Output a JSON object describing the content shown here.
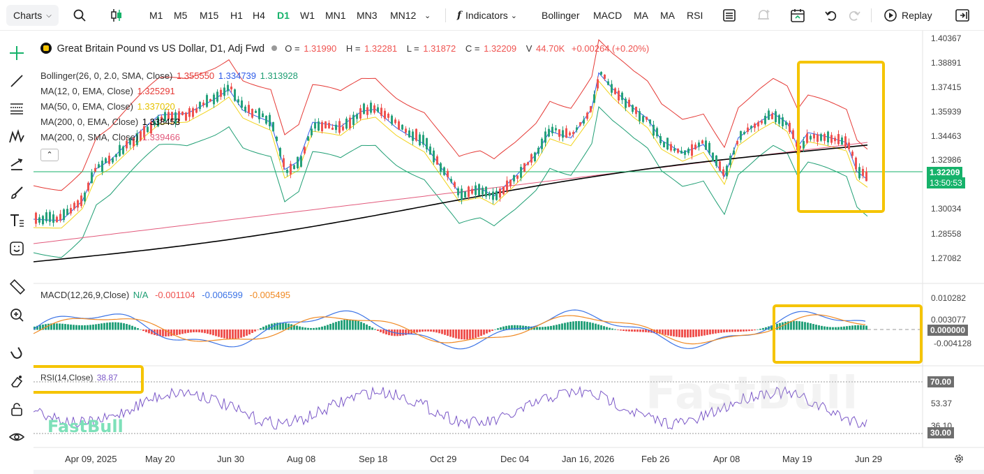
{
  "toolbar": {
    "charts_label": "Charts",
    "timeframes": [
      "M1",
      "M5",
      "M15",
      "H1",
      "H4",
      "D1",
      "W1",
      "MN1",
      "MN3",
      "MN12"
    ],
    "active_timeframe": "D1",
    "indicators_label": "Indicators",
    "quick_indicators": [
      "Bollinger",
      "MACD",
      "MA",
      "MA",
      "RSI"
    ],
    "replay_label": "Replay"
  },
  "symbol": {
    "title": "Great Britain Pound vs US Dollar, D1, Adj Fwd",
    "open_label": "O =",
    "open": "1.31990",
    "high_label": "H =",
    "high": "1.32281",
    "low_label": "L =",
    "low": "1.31872",
    "close_label": "C =",
    "close": "1.32209",
    "volume_label": "V",
    "volume": "44.70K",
    "change": "+0.00264 (+0.20%)"
  },
  "legend": {
    "bollinger": {
      "label": "Bollinger(26, 0, 2.0, SMA, Close)",
      "upper": "1.355550",
      "mid": "1.334739",
      "lower": "1.313928"
    },
    "ma1": {
      "label": "MA(12, 0, EMA, Close)",
      "value": "1.325291"
    },
    "ma2": {
      "label": "MA(50, 0, EMA, Close)",
      "value": "1.337020"
    },
    "ma3": {
      "label": "MA(200, 0, EMA, Close)",
      "value": "1.338453"
    },
    "ma4": {
      "label": "MA(200, 0, SMA, Close)",
      "value": "1.339466"
    },
    "collapse_icon": "chevron-up-icon"
  },
  "price_axis": [
    "1.40367",
    "1.38891",
    "1.37415",
    "1.35939",
    "1.34463",
    "1.32986",
    "1.30034",
    "1.28558",
    "1.27082"
  ],
  "last_price": "1.32209",
  "countdown": "13:50:53",
  "macd": {
    "label": "MACD(12,26,9,Close)",
    "na": "N/A",
    "v1": "-0.001104",
    "v2": "-0.006599",
    "v3": "-0.005495",
    "axis": [
      "0.010282",
      "0.003077",
      "-0.004128"
    ],
    "zero_badge": "0.000000"
  },
  "rsi": {
    "label": "RSI(14,Close)",
    "value": "38.87",
    "axis_mid": "53.37",
    "axis_low_partial": "36.10",
    "level_high": "70.00",
    "level_low": "30.00"
  },
  "dates": [
    "Apr 09, 2025",
    "May 20",
    "Jun 30",
    "Aug 08",
    "Sep 18",
    "Oct 29",
    "Dec 04",
    "Jan 16, 2026",
    "Feb 26",
    "Apr 08",
    "May 19",
    "Jun 29"
  ],
  "watermark": "FastBull",
  "colors": {
    "up": "#26a17b",
    "down": "#ef5350",
    "accent": "#16b26a",
    "highlight": "#f5c400",
    "boll_upper": "#e53935",
    "boll_lower": "#1e9e73",
    "boll_mid": "#2e5be8",
    "ema50": "#f2d31b",
    "ema200": "#000000",
    "sma200": "#e25a7c",
    "macd_line": "#3b73e6",
    "signal_line": "#f08a24",
    "rsi_line": "#7c59c8"
  }
}
